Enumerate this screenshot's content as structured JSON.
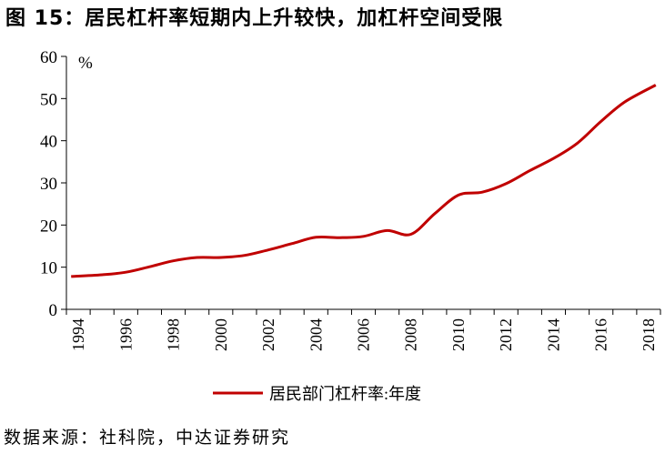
{
  "header": {
    "title": "图 15：居民杠杆率短期内上升较快，加杠杆空间受限"
  },
  "footer": {
    "source": "数据来源：社科院，中达证券研究"
  },
  "colors": {
    "series": "#c00000",
    "axis": "#000000"
  },
  "chart_data": {
    "type": "line",
    "title": "图 15：居民杠杆率短期内上升较快，加杠杆空间受限",
    "unit": "%",
    "xlabel": "",
    "ylabel": "",
    "ylim": [
      0,
      60
    ],
    "yticks": [
      "0",
      "10",
      "20",
      "30",
      "40",
      "50",
      "60"
    ],
    "xlim": [
      1993.5,
      2018.5
    ],
    "xticks": [
      "1994",
      "1996",
      "1998",
      "2000",
      "2002",
      "2004",
      "2006",
      "2008",
      "2010",
      "2012",
      "2014",
      "2016",
      "2018"
    ],
    "grid": false,
    "legend": "bottom",
    "series": [
      {
        "name": "居民部门杠杆率:年度",
        "color": "#c00000",
        "x": [
          1993.7,
          1995,
          1996,
          1997,
          1998,
          1999,
          2000,
          2001,
          2002,
          2003,
          2004,
          2005,
          2006,
          2007,
          2008,
          2009,
          2010,
          2011,
          2012,
          2013,
          2014,
          2015,
          2016,
          2017,
          2018.3
        ],
        "values": [
          7.8,
          8.2,
          8.8,
          10.1,
          11.5,
          12.3,
          12.3,
          12.8,
          14.1,
          15.6,
          17.1,
          17.0,
          17.3,
          18.7,
          17.8,
          22.7,
          27.1,
          27.8,
          29.8,
          32.9,
          35.8,
          39.4,
          44.6,
          49.2,
          53.2
        ]
      }
    ]
  }
}
